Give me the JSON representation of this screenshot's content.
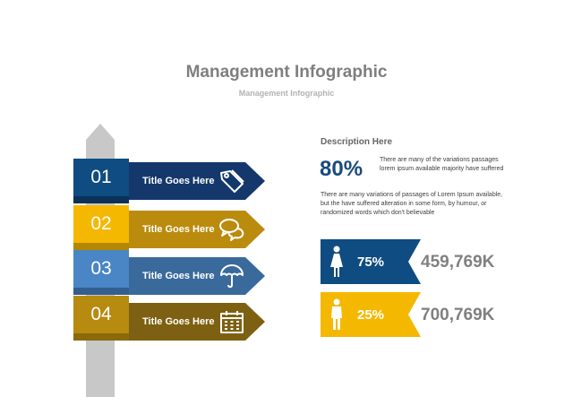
{
  "header": {
    "title": "Management Infographic",
    "subtitle": "Management Infographic"
  },
  "steps": [
    {
      "number": "01",
      "title": "Title Goes Here",
      "icon": "tag-icon",
      "badge_color": "#0f4c81",
      "arrow_color": "#14386b"
    },
    {
      "number": "02",
      "title": "Title Goes Here",
      "icon": "chat-bubbles-icon",
      "badge_color": "#f5b800",
      "arrow_color": "#bb8b0e"
    },
    {
      "number": "03",
      "title": "Title Goes Here",
      "icon": "umbrella-icon",
      "badge_color": "#4a86c5",
      "arrow_color": "#3a6a9c"
    },
    {
      "number": "04",
      "title": "Title Goes Here",
      "icon": "calendar-icon",
      "badge_color": "#b78a10",
      "arrow_color": "#7d6011"
    }
  ],
  "description": {
    "heading": "Description Here",
    "percent": "80%",
    "percent_text": "There are many of the variations passages lorem ipsum available majority have suffered",
    "paragraph": "There are many variations of passages  of Lorem Ipsum available, but the have suffered alteration in some  form, by humour, or randomized words  which  don't believable"
  },
  "stats": [
    {
      "percent": "75%",
      "value": "459,769K",
      "icon": "female-icon",
      "color": "#0f4c81"
    },
    {
      "percent": "25%",
      "value": "700,769K",
      "icon": "male-icon",
      "color": "#f5b800"
    }
  ]
}
